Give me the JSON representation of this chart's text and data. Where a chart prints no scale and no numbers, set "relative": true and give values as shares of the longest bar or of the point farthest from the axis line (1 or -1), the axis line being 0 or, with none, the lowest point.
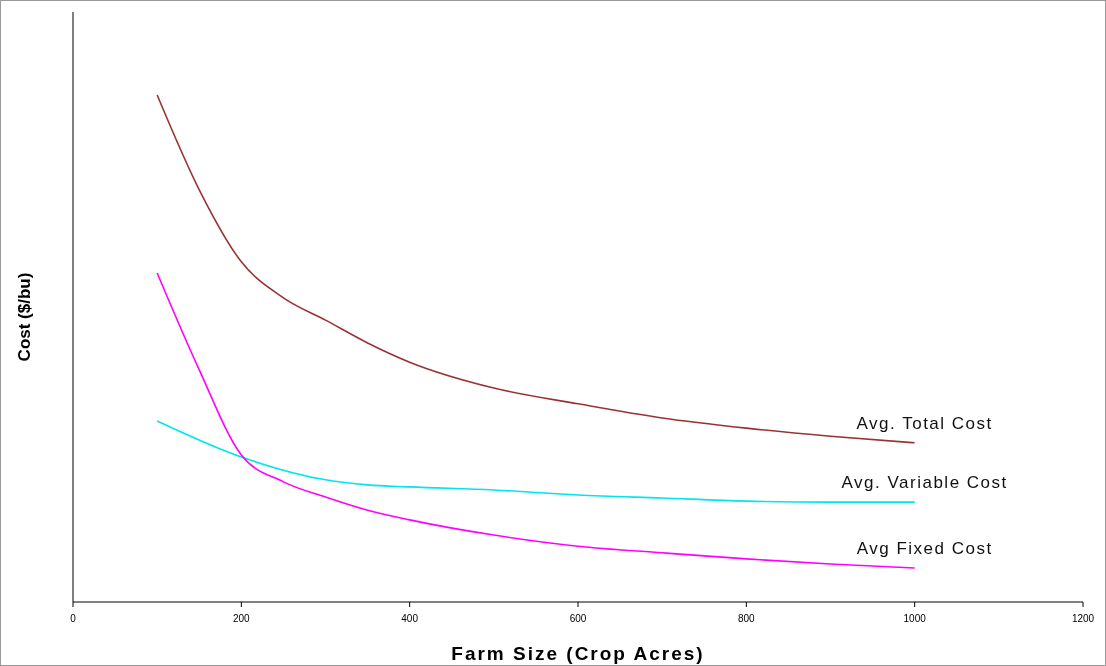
{
  "chart_data": {
    "type": "line",
    "relative": true,
    "xlabel": "Farm Size (Crop Acres)",
    "ylabel": "Cost ($/bu)",
    "xlim": [
      0,
      1200
    ],
    "xticks": [
      0,
      200,
      400,
      600,
      800,
      1000,
      1200
    ],
    "grid": false,
    "legend": false,
    "marker": "none",
    "line_style": "solid",
    "series": [
      {
        "name": "Avg. Total Cost",
        "color": "#993333",
        "x": [
          100,
          150,
          200,
          250,
          300,
          350,
          400,
          500,
          600,
          700,
          800,
          900,
          1000
        ],
        "values": [
          1.0,
          0.813,
          0.671,
          0.6,
          0.556,
          0.511,
          0.473,
          0.422,
          0.391,
          0.363,
          0.343,
          0.327,
          0.314
        ]
      },
      {
        "name": "Avg. Variable Cost",
        "color": "#00e5ee",
        "x": [
          100,
          200,
          300,
          350,
          400,
          500,
          600,
          700,
          800,
          900,
          1000
        ],
        "values": [
          0.357,
          0.286,
          0.241,
          0.231,
          0.227,
          0.221,
          0.211,
          0.205,
          0.199,
          0.197,
          0.197
        ]
      },
      {
        "name": "Avg Fixed Cost",
        "color": "#ff00ff",
        "x": [
          100,
          150,
          200,
          250,
          300,
          350,
          400,
          500,
          600,
          700,
          800,
          900,
          1000
        ],
        "values": [
          0.649,
          0.458,
          0.29,
          0.237,
          0.207,
          0.181,
          0.162,
          0.132,
          0.11,
          0.097,
          0.085,
          0.075,
          0.067
        ]
      }
    ]
  }
}
